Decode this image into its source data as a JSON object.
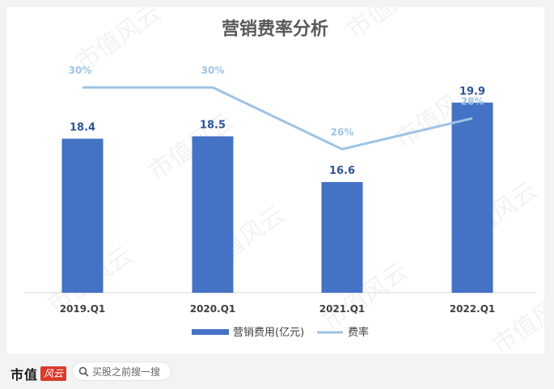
{
  "chart_data": {
    "type": "bar+line",
    "title": "营销费率分析",
    "categories": [
      "2019.Q1",
      "2020.Q1",
      "2021.Q1",
      "2022.Q1"
    ],
    "series": [
      {
        "name": "营销费用(亿元)",
        "type": "bar",
        "color": "#4472c4",
        "values": [
          18.4,
          18.5,
          16.6,
          19.9
        ]
      },
      {
        "name": "费率",
        "type": "line",
        "color": "#9dc3e6",
        "values": [
          30,
          30,
          26,
          28
        ],
        "value_labels": [
          "30%",
          "30%",
          "26%",
          "28%"
        ]
      }
    ],
    "bar_ylim": [
      12,
      20.5
    ],
    "line_ylim": [
      20,
      31
    ],
    "grid": false,
    "legend": "bottom"
  },
  "watermark": {
    "text": "市值风云"
  },
  "footer": {
    "brand": "市值",
    "brand_badge": "风云",
    "search_placeholder": "买股之前搜一搜"
  }
}
